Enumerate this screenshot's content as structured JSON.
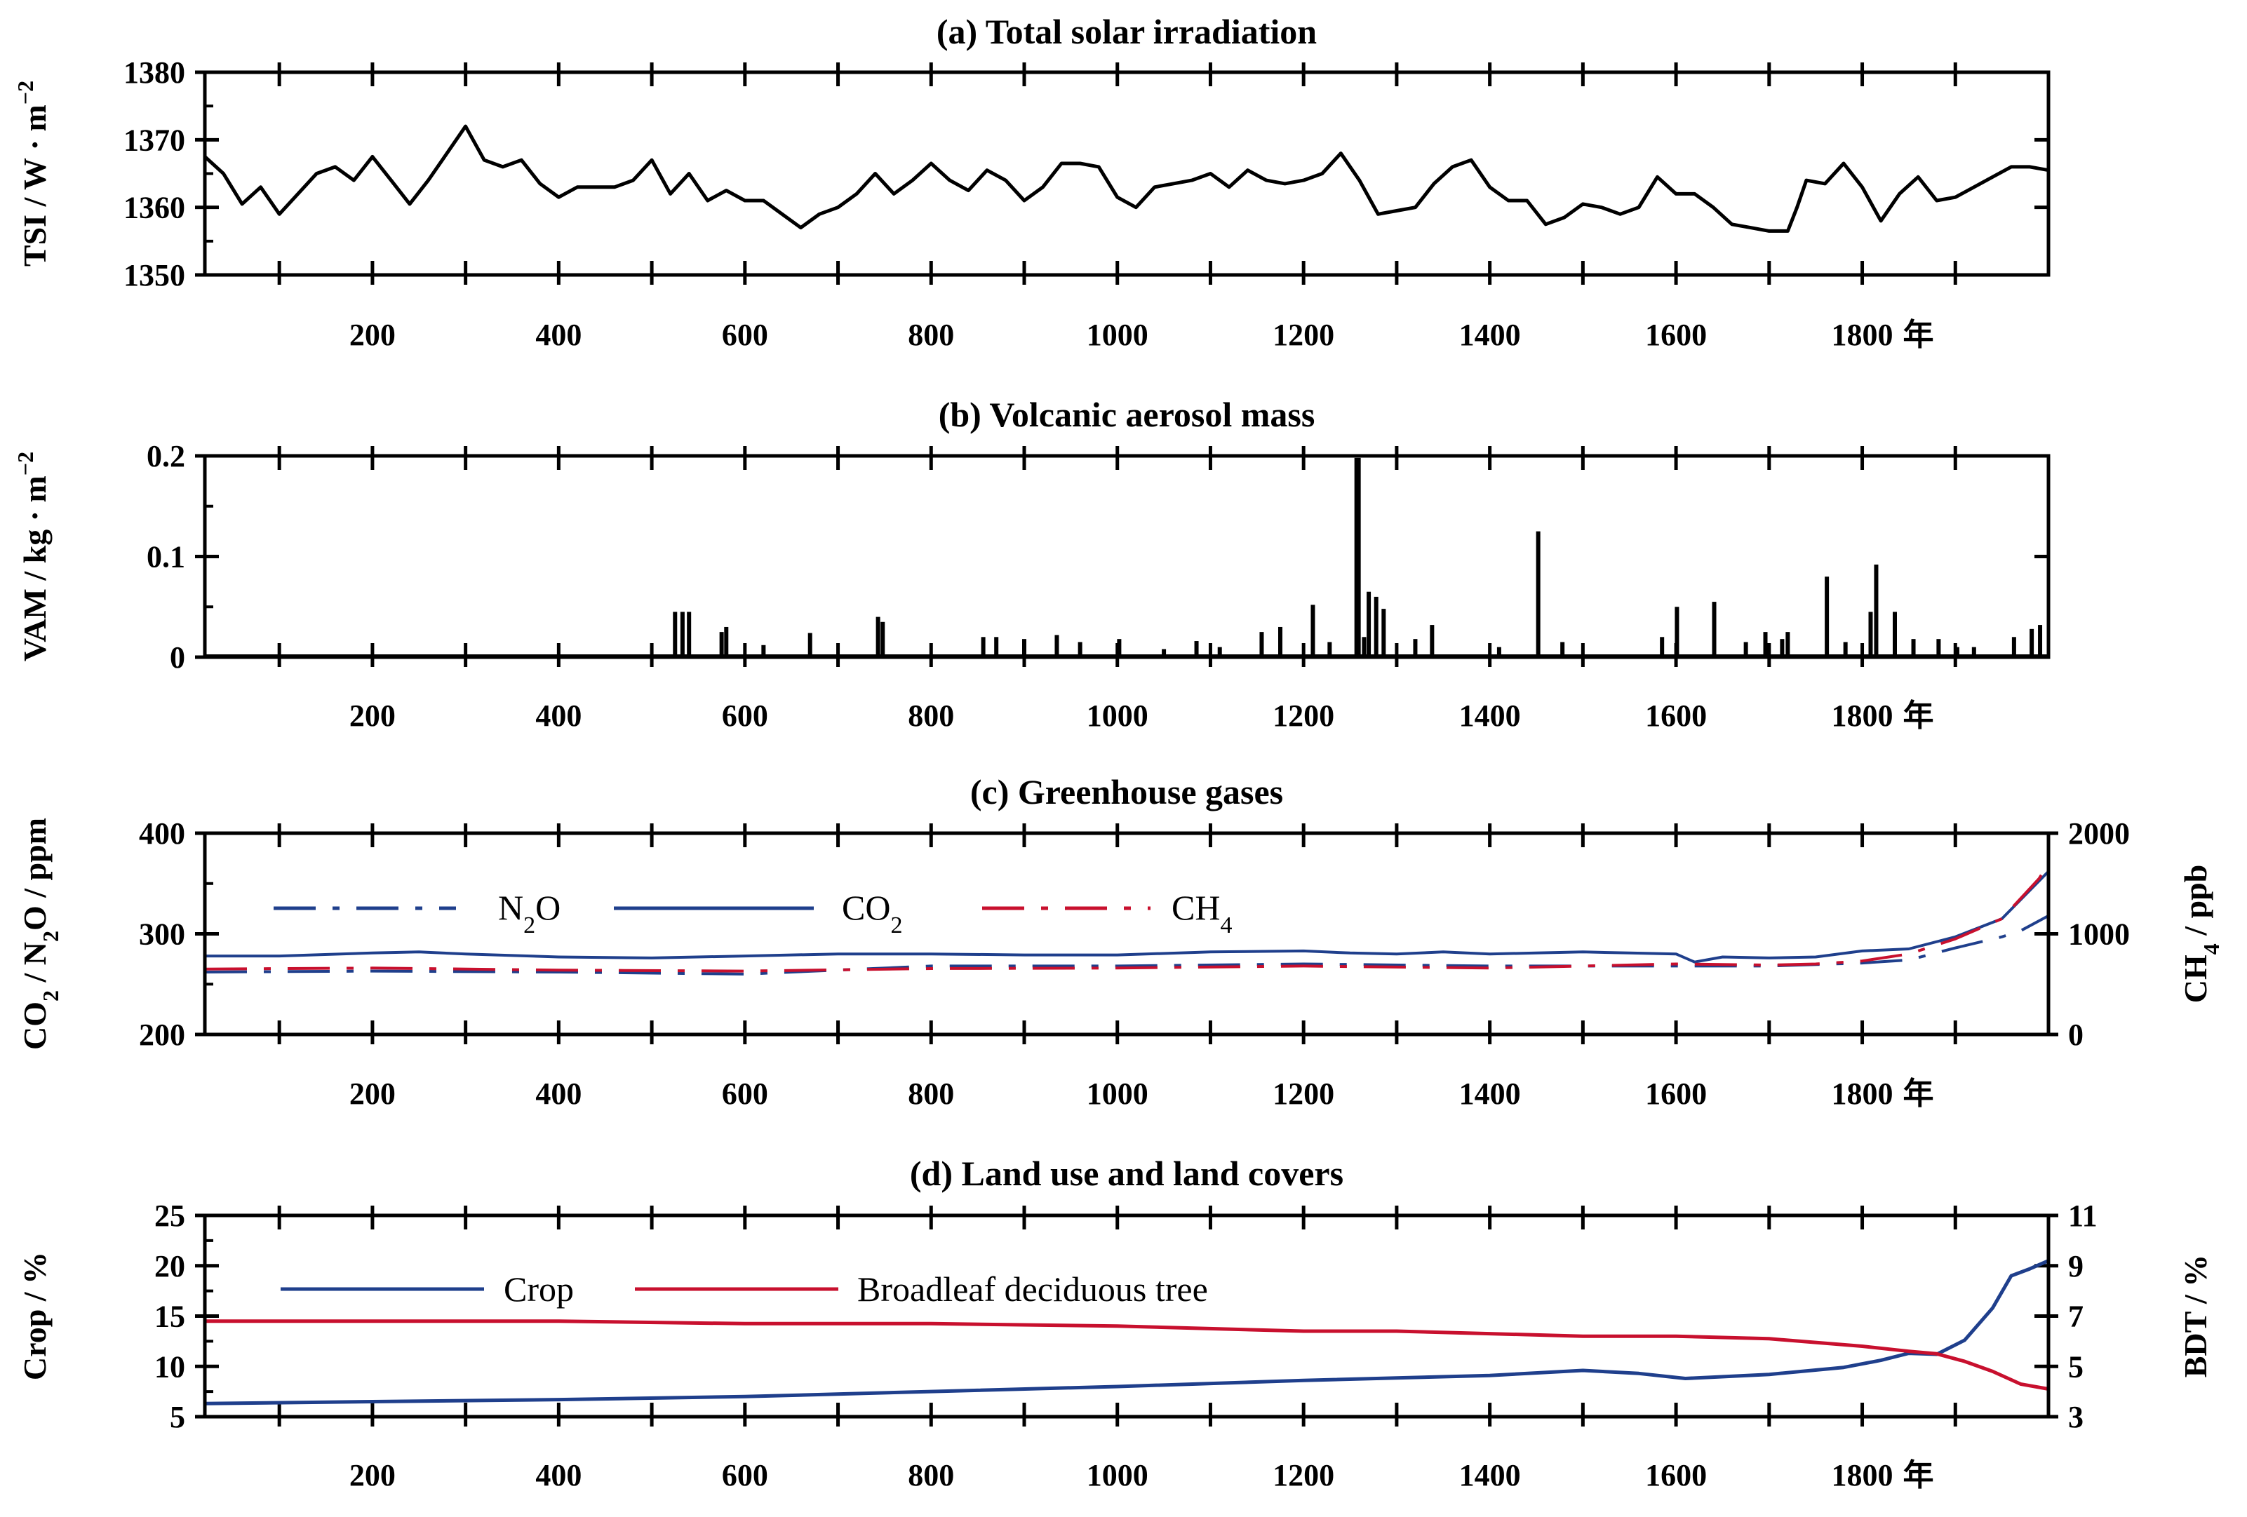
{
  "year_unit": "年",
  "chart_data": [
    {
      "type": "line",
      "title": "(a) Total solar irradiation",
      "ylabel": "TSI / W · m",
      "ylabel_sup": "−2",
      "xlim": [
        20,
        2000
      ],
      "ylim": [
        1350,
        1380
      ],
      "xticks": [
        200,
        400,
        600,
        800,
        1000,
        1200,
        1400,
        1600,
        1800
      ],
      "yticks": [
        1350,
        1360,
        1370,
        1380
      ],
      "series": [
        {
          "color": "#000000",
          "x": [
            20,
            40,
            60,
            80,
            100,
            120,
            140,
            160,
            180,
            200,
            220,
            240,
            260,
            280,
            300,
            320,
            340,
            360,
            380,
            400,
            420,
            440,
            460,
            480,
            500,
            520,
            540,
            560,
            580,
            600,
            620,
            640,
            660,
            680,
            700,
            720,
            740,
            760,
            780,
            800,
            820,
            840,
            860,
            880,
            900,
            920,
            940,
            960,
            980,
            1000,
            1020,
            1040,
            1060,
            1080,
            1100,
            1120,
            1140,
            1160,
            1180,
            1200,
            1220,
            1240,
            1260,
            1280,
            1300,
            1320,
            1340,
            1360,
            1380,
            1400,
            1420,
            1440,
            1460,
            1480,
            1500,
            1520,
            1540,
            1560,
            1580,
            1600,
            1620,
            1640,
            1660,
            1680,
            1700,
            1720,
            1730,
            1740,
            1760,
            1780,
            1800,
            1820,
            1840,
            1860,
            1880,
            1900,
            1920,
            1940,
            1960,
            1980,
            2000
          ],
          "values": [
            1367.5,
            1365,
            1360.5,
            1363,
            1359,
            1362,
            1365,
            1366,
            1364,
            1367.5,
            1364,
            1360.5,
            1364,
            1368,
            1372,
            1367,
            1366,
            1367,
            1363.5,
            1361.5,
            1363,
            1363,
            1363,
            1364,
            1367,
            1362,
            1365,
            1361,
            1362.5,
            1361,
            1361,
            1359,
            1357,
            1359,
            1360,
            1362,
            1365,
            1362,
            1364,
            1366.5,
            1364,
            1362.5,
            1365.5,
            1364,
            1361,
            1363,
            1366.5,
            1366.5,
            1366,
            1361.5,
            1360,
            1363,
            1363.5,
            1364,
            1365,
            1363,
            1365.5,
            1364,
            1363.5,
            1364,
            1365,
            1368,
            1364,
            1359,
            1359.5,
            1360,
            1363.5,
            1366,
            1367,
            1363,
            1361,
            1361,
            1357.5,
            1358.5,
            1360.5,
            1360,
            1359,
            1360,
            1364.5,
            1362,
            1362,
            1360,
            1357.5,
            1357,
            1356.5,
            1356.5,
            1360,
            1364,
            1363.5,
            1366.5,
            1363,
            1358,
            1362,
            1364.5,
            1361,
            1361.5,
            1363,
            1364.5,
            1366,
            1366,
            1365.5
          ]
        }
      ]
    },
    {
      "type": "bar",
      "title": "(b) Volcanic aerosol mass",
      "ylabel": "VAM / kg · m",
      "ylabel_sup": "−2",
      "xlim": [
        20,
        2000
      ],
      "ylim": [
        0,
        0.2
      ],
      "xticks": [
        200,
        400,
        600,
        800,
        1000,
        1200,
        1400,
        1600,
        1800
      ],
      "yticks": [
        0,
        0.1,
        0.2
      ],
      "ytick_labels": [
        "0",
        "0.1",
        "0.2"
      ],
      "x": [
        525,
        533,
        540,
        575,
        580,
        620,
        670,
        743,
        748,
        856,
        870,
        900,
        935,
        960,
        1002,
        1050,
        1085,
        1110,
        1155,
        1175,
        1210,
        1228,
        1258,
        1265,
        1270,
        1278,
        1286,
        1320,
        1338,
        1410,
        1452,
        1478,
        1585,
        1601,
        1641,
        1675,
        1696,
        1714,
        1720,
        1762,
        1782,
        1809,
        1815,
        1835,
        1855,
        1882,
        1902,
        1920,
        1963,
        1982,
        1991
      ],
      "values": [
        0.045,
        0.045,
        0.045,
        0.025,
        0.03,
        0.012,
        0.024,
        0.04,
        0.035,
        0.02,
        0.02,
        0.018,
        0.022,
        0.015,
        0.018,
        0.008,
        0.016,
        0.01,
        0.025,
        0.03,
        0.052,
        0.015,
        0.198,
        0.02,
        0.065,
        0.06,
        0.048,
        0.018,
        0.032,
        0.01,
        0.125,
        0.015,
        0.02,
        0.05,
        0.055,
        0.015,
        0.025,
        0.018,
        0.025,
        0.08,
        0.015,
        0.045,
        0.092,
        0.045,
        0.018,
        0.018,
        0.01,
        0.01,
        0.02,
        0.028,
        0.032
      ]
    },
    {
      "type": "line",
      "title": "(c) Greenhouse gases",
      "ylabel_parts": [
        "CO",
        "2",
        " / N",
        "2",
        "O / ppm"
      ],
      "y2label_parts": [
        "CH",
        "4",
        " / ppb"
      ],
      "xlim": [
        20,
        2000
      ],
      "ylim": [
        200,
        400
      ],
      "y2lim": [
        0,
        2000
      ],
      "xticks": [
        200,
        400,
        600,
        800,
        1000,
        1200,
        1400,
        1600,
        1800
      ],
      "yticks": [
        200,
        300,
        400
      ],
      "y2ticks": [
        0,
        1000,
        2000
      ],
      "legend": [
        {
          "label": "N",
          "sub": "2",
          "tail": "O",
          "color": "#1f3f8c",
          "dash": "dashdot"
        },
        {
          "label": "CO",
          "sub": "2",
          "tail": "",
          "color": "#1f3f8c",
          "dash": "solid"
        },
        {
          "label": "CH",
          "sub": "4",
          "tail": "",
          "color": "#c8102e",
          "dash": "dashdot"
        }
      ],
      "series": [
        {
          "axis": "left",
          "color": "#1f3f8c",
          "x": [
            20,
            100,
            200,
            250,
            300,
            400,
            500,
            600,
            700,
            800,
            900,
            1000,
            1100,
            1200,
            1250,
            1300,
            1350,
            1400,
            1450,
            1500,
            1550,
            1600,
            1620,
            1650,
            1700,
            1750,
            1800,
            1850,
            1900,
            1950,
            2000
          ],
          "values": [
            278,
            278,
            281,
            282,
            280,
            277,
            276,
            278,
            280,
            280,
            279,
            279,
            282,
            283,
            281,
            280,
            282,
            280,
            281,
            282,
            281,
            280,
            272,
            277,
            276,
            277,
            283,
            285,
            297,
            315,
            362
          ]
        },
        {
          "axis": "left",
          "color": "#1f3f8c",
          "x": [
            20,
            200,
            400,
            600,
            800,
            1000,
            1200,
            1400,
            1600,
            1700,
            1800,
            1850,
            1900,
            1950,
            1970,
            2000
          ],
          "values": [
            262,
            263,
            262,
            260,
            268,
            268,
            270,
            268,
            268,
            268,
            271,
            274,
            286,
            297,
            303,
            318
          ]
        },
        {
          "axis": "right",
          "color": "#c8102e",
          "x": [
            20,
            200,
            400,
            600,
            800,
            1000,
            1200,
            1400,
            1600,
            1700,
            1750,
            1800,
            1850,
            1900,
            1950,
            1990,
            2000
          ],
          "values": [
            650,
            660,
            640,
            630,
            655,
            660,
            680,
            660,
            700,
            690,
            700,
            730,
            800,
            950,
            1150,
            1550,
            1700
          ]
        }
      ]
    },
    {
      "type": "line",
      "title": "(d) Land use and land covers",
      "ylabel": "Crop / %",
      "y2label": "BDT / %",
      "xlim": [
        20,
        2000
      ],
      "ylim": [
        5,
        25
      ],
      "y2lim": [
        3,
        11
      ],
      "xticks": [
        200,
        400,
        600,
        800,
        1000,
        1200,
        1400,
        1600,
        1800
      ],
      "yticks": [
        5,
        10,
        15,
        20,
        25
      ],
      "y2ticks": [
        3,
        5,
        7,
        9,
        11
      ],
      "legend": [
        {
          "label": "Crop",
          "color": "#1f3f8c"
        },
        {
          "label": "Broadleaf deciduous tree",
          "color": "#c8102e"
        }
      ],
      "series": [
        {
          "name": "Crop",
          "axis": "left",
          "color": "#1f3f8c",
          "x": [
            20,
            200,
            400,
            600,
            800,
            1000,
            1200,
            1400,
            1500,
            1560,
            1610,
            1700,
            1780,
            1820,
            1850,
            1880,
            1910,
            1940,
            1960,
            1980,
            2000
          ],
          "values": [
            6.3,
            6.5,
            6.7,
            7.0,
            7.5,
            8.0,
            8.6,
            9.1,
            9.6,
            9.3,
            8.8,
            9.2,
            9.9,
            10.6,
            11.3,
            11.2,
            12.6,
            15.8,
            19.0,
            19.7,
            20.5
          ]
        },
        {
          "name": "Broadleaf deciduous tree",
          "axis": "right",
          "color": "#c8102e",
          "x": [
            20,
            200,
            400,
            600,
            800,
            1000,
            1200,
            1300,
            1400,
            1500,
            1600,
            1700,
            1800,
            1850,
            1880,
            1910,
            1940,
            1970,
            2000
          ],
          "values": [
            6.8,
            6.8,
            6.8,
            6.7,
            6.7,
            6.6,
            6.4,
            6.4,
            6.3,
            6.2,
            6.2,
            6.1,
            5.8,
            5.6,
            5.5,
            5.2,
            4.8,
            4.3,
            4.1
          ]
        }
      ]
    }
  ]
}
